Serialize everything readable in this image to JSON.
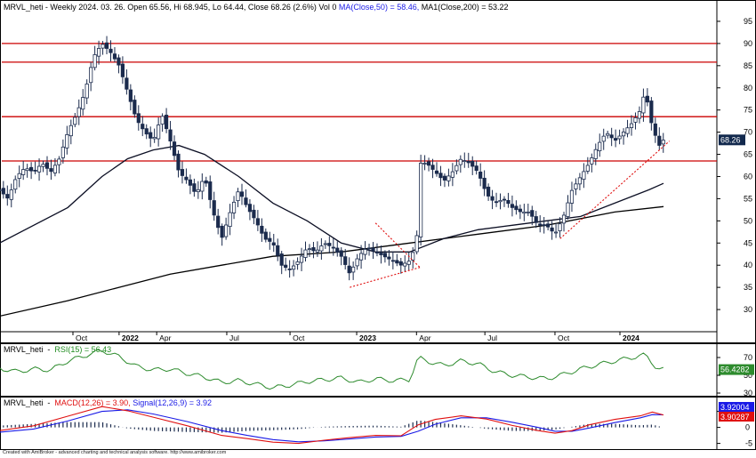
{
  "chart_data": {
    "type": "candlestick",
    "price_pane": {
      "title": {
        "ticker": "MRVL_heti",
        "header": "MRVL_heti - Weekly 2024. 03. 26. Open 65.56, Hi 68.945, Lo 64.44, Close 68.26 (2.6%) Vol 0",
        "ma50_label": "MA(Close,50) = 58.46,",
        "ma200_label": "MA1(Close,200) = 53.22"
      },
      "ylim": [
        25,
        97
      ],
      "y_ticks": [
        30,
        35,
        40,
        45,
        50,
        55,
        60,
        65,
        70,
        75,
        80,
        85,
        90,
        95
      ],
      "x_ticks": [
        {
          "label": "Oct",
          "bold": false,
          "w": 1.3
        },
        {
          "label": "2022",
          "bold": true,
          "w": 4.0
        },
        {
          "label": "Apr",
          "bold": false,
          "w": 6.2
        },
        {
          "label": "Jul",
          "bold": false,
          "w": 10.3
        },
        {
          "label": "Oct",
          "bold": false,
          "w": 14.0
        },
        {
          "label": "2023",
          "bold": true,
          "w": 17.9
        },
        {
          "label": "Apr",
          "bold": false,
          "w": 21.4
        },
        {
          "label": "Jul",
          "bold": false,
          "w": 25.4
        },
        {
          "label": "Oct",
          "bold": false,
          "w": 29.5
        },
        {
          "label": "2024",
          "bold": true,
          "w": 33.3
        }
      ],
      "last_price_label": "68.26",
      "horizontal_levels": [
        63.5,
        73.5,
        85.8,
        90
      ],
      "ohlc_anchors": [
        [
          -3.0,
          57
        ],
        [
          -2.5,
          55
        ],
        [
          -2.0,
          60
        ],
        [
          -1.5,
          62
        ],
        [
          -1.0,
          61
        ],
        [
          -0.5,
          63
        ],
        [
          0,
          61
        ],
        [
          0.5,
          64
        ],
        [
          1.0,
          70
        ],
        [
          1.5,
          74
        ],
        [
          2.0,
          79
        ],
        [
          2.5,
          87
        ],
        [
          3.0,
          90
        ],
        [
          3.5,
          88
        ],
        [
          4.0,
          85
        ],
        [
          4.5,
          79
        ],
        [
          5.0,
          73
        ],
        [
          5.5,
          70
        ],
        [
          6.0,
          68
        ],
        [
          6.5,
          74
        ],
        [
          7.0,
          68
        ],
        [
          7.5,
          61
        ],
        [
          8.0,
          59
        ],
        [
          8.5,
          56
        ],
        [
          9.0,
          60
        ],
        [
          9.5,
          52
        ],
        [
          10.0,
          46
        ],
        [
          10.5,
          52
        ],
        [
          11.0,
          57
        ],
        [
          11.5,
          53
        ],
        [
          12.0,
          50
        ],
        [
          12.5,
          46
        ],
        [
          13.0,
          45
        ],
        [
          13.5,
          40
        ],
        [
          14.0,
          39
        ],
        [
          14.5,
          41
        ],
        [
          15.0,
          44
        ],
        [
          15.5,
          43
        ],
        [
          16.0,
          45
        ],
        [
          16.5,
          44
        ],
        [
          17.0,
          42
        ],
        [
          17.5,
          38
        ],
        [
          18.0,
          42
        ],
        [
          18.5,
          44
        ],
        [
          19.0,
          43
        ],
        [
          19.5,
          42
        ],
        [
          20.0,
          41
        ],
        [
          20.5,
          40
        ],
        [
          21.0,
          41
        ],
        [
          21.4,
          45
        ],
        [
          21.6,
          63
        ],
        [
          22.0,
          63
        ],
        [
          22.5,
          61
        ],
        [
          23.0,
          59
        ],
        [
          23.5,
          61
        ],
        [
          24.0,
          64
        ],
        [
          24.5,
          63
        ],
        [
          25.0,
          61
        ],
        [
          25.5,
          56
        ],
        [
          26.0,
          54
        ],
        [
          26.5,
          55
        ],
        [
          27.0,
          53
        ],
        [
          27.5,
          52
        ],
        [
          28.0,
          52
        ],
        [
          28.5,
          49
        ],
        [
          29.0,
          49
        ],
        [
          29.5,
          47
        ],
        [
          30.0,
          51
        ],
        [
          30.5,
          57
        ],
        [
          31.0,
          60
        ],
        [
          31.5,
          63
        ],
        [
          32.0,
          67
        ],
        [
          32.5,
          70
        ],
        [
          33.0,
          68
        ],
        [
          33.5,
          70
        ],
        [
          34.0,
          72
        ],
        [
          34.5,
          75
        ],
        [
          34.8,
          80
        ],
        [
          35.0,
          74
        ],
        [
          35.3,
          70
        ],
        [
          35.6,
          67
        ],
        [
          35.85,
          68.26
        ]
      ],
      "ma50_line": [
        [
          -3,
          45
        ],
        [
          1,
          53
        ],
        [
          3,
          60
        ],
        [
          4.5,
          64
        ],
        [
          6,
          66
        ],
        [
          7.5,
          67
        ],
        [
          9,
          65
        ],
        [
          11,
          60
        ],
        [
          13,
          54
        ],
        [
          15,
          50
        ],
        [
          17,
          45
        ],
        [
          19,
          43
        ],
        [
          21,
          43
        ],
        [
          23,
          46
        ],
        [
          25,
          48
        ],
        [
          27,
          49
        ],
        [
          29,
          50
        ],
        [
          31,
          51
        ],
        [
          33,
          54
        ],
        [
          35,
          57
        ],
        [
          35.85,
          58.46
        ]
      ],
      "ma200_line": [
        [
          -3,
          28.5
        ],
        [
          1,
          32
        ],
        [
          4,
          35
        ],
        [
          7,
          38
        ],
        [
          10,
          40
        ],
        [
          13,
          42
        ],
        [
          17,
          43
        ],
        [
          21,
          45
        ],
        [
          25,
          47
        ],
        [
          29,
          49
        ],
        [
          33,
          52
        ],
        [
          35.85,
          53.22
        ]
      ],
      "trendlines": [
        {
          "color": "#e01010",
          "dash": true,
          "pts": [
            [
              19.0,
              49.5
            ],
            [
              21.6,
              39.5
            ]
          ]
        },
        {
          "color": "#e01010",
          "dash": true,
          "pts": [
            [
              17.5,
              35.0
            ],
            [
              21.6,
              39.5
            ]
          ]
        },
        {
          "color": "#e01010",
          "dash": true,
          "pts": [
            [
              29.8,
              46.0
            ],
            [
              36.2,
              68.0
            ]
          ]
        }
      ]
    },
    "rsi_pane": {
      "title": {
        "ticker": "MRVL_heti",
        "label": "RSI(15) = 56.43"
      },
      "ylim": [
        28,
        82
      ],
      "y_ticks": [
        30,
        50,
        70
      ],
      "last_label": "56.4282",
      "anchors": [
        [
          -3,
          58
        ],
        [
          -2,
          54
        ],
        [
          -1,
          57
        ],
        [
          0,
          56
        ],
        [
          1,
          66
        ],
        [
          2,
          72
        ],
        [
          3,
          78
        ],
        [
          4,
          71
        ],
        [
          5,
          60
        ],
        [
          6,
          56
        ],
        [
          7,
          57
        ],
        [
          8,
          52
        ],
        [
          9,
          48
        ],
        [
          10,
          42
        ],
        [
          11,
          44
        ],
        [
          12,
          40
        ],
        [
          13,
          36
        ],
        [
          14,
          39
        ],
        [
          15,
          43
        ],
        [
          16,
          45
        ],
        [
          17,
          47
        ],
        [
          18,
          42
        ],
        [
          19,
          46
        ],
        [
          20,
          44
        ],
        [
          21,
          45
        ],
        [
          21.5,
          70
        ],
        [
          22,
          66
        ],
        [
          23,
          61
        ],
        [
          24,
          66
        ],
        [
          25,
          63
        ],
        [
          26,
          54
        ],
        [
          27,
          50
        ],
        [
          28,
          48
        ],
        [
          29,
          46
        ],
        [
          30,
          51
        ],
        [
          31,
          57
        ],
        [
          32,
          62
        ],
        [
          33,
          66
        ],
        [
          34,
          70
        ],
        [
          34.8,
          73
        ],
        [
          35.2,
          64
        ],
        [
          35.5,
          57
        ],
        [
          35.85,
          56.43
        ]
      ]
    },
    "macd_pane": {
      "title": {
        "ticker": "MRVL_heti",
        "macd_label": "MACD(12,26) = 3.90,",
        "signal_label": "Signal(12,26,9) = 3.92"
      },
      "ylim": [
        -6.5,
        8.5
      ],
      "y_ticks": [
        5,
        0,
        -5
      ],
      "signal_last_label": "3.92004",
      "macd_last_label": "3.90287",
      "macd": [
        [
          -3,
          -1
        ],
        [
          -1,
          0.5
        ],
        [
          1,
          3.5
        ],
        [
          3,
          6.5
        ],
        [
          4.5,
          5.2
        ],
        [
          6,
          3.2
        ],
        [
          8,
          0.5
        ],
        [
          10,
          -2.5
        ],
        [
          11.5,
          -3.5
        ],
        [
          13,
          -4.6
        ],
        [
          14.5,
          -5.0
        ],
        [
          16,
          -4.0
        ],
        [
          17.5,
          -3.2
        ],
        [
          19,
          -2.5
        ],
        [
          20.5,
          -2.6
        ],
        [
          21.5,
          0.8
        ],
        [
          22.5,
          2.5
        ],
        [
          24,
          3.6
        ],
        [
          25.5,
          2.6
        ],
        [
          27,
          0.6
        ],
        [
          28.5,
          -1.0
        ],
        [
          29.5,
          -1.8
        ],
        [
          30.5,
          -1.0
        ],
        [
          31.5,
          0.8
        ],
        [
          33,
          2.5
        ],
        [
          34.5,
          3.6
        ],
        [
          35.2,
          4.8
        ],
        [
          35.85,
          3.9
        ]
      ],
      "signal": [
        [
          -3,
          -1.5
        ],
        [
          -1,
          -0.5
        ],
        [
          1,
          2.0
        ],
        [
          3,
          5.0
        ],
        [
          4.5,
          5.5
        ],
        [
          6,
          4.2
        ],
        [
          8,
          1.8
        ],
        [
          10,
          -1.0
        ],
        [
          11.5,
          -2.5
        ],
        [
          13,
          -3.8
        ],
        [
          14.5,
          -4.5
        ],
        [
          16,
          -4.2
        ],
        [
          17.5,
          -3.6
        ],
        [
          19,
          -3.0
        ],
        [
          20.5,
          -2.8
        ],
        [
          21.5,
          -1.2
        ],
        [
          22.5,
          1.0
        ],
        [
          24,
          3.0
        ],
        [
          25.5,
          3.0
        ],
        [
          27,
          1.6
        ],
        [
          28.5,
          0.0
        ],
        [
          29.5,
          -1.2
        ],
        [
          30.5,
          -1.2
        ],
        [
          31.5,
          -0.2
        ],
        [
          33,
          1.5
        ],
        [
          34.5,
          3.0
        ],
        [
          35.2,
          4.0
        ],
        [
          35.85,
          3.92
        ]
      ]
    }
  },
  "colors": {
    "up": "#ffffff",
    "down": "#1b2b4d",
    "candle_outline": "#1b2b4d",
    "level_lines": "#cc0000",
    "ma50": "#0c0f24",
    "ma200": "#000000",
    "rsi": "#2d8b2d",
    "macd": "#e01010",
    "signal": "#1a1ae6",
    "histogram": "#1b2b4d",
    "last_price_box": "#12294d",
    "rsi_box": "#2d8b2d",
    "signal_box": "#1a1ae6",
    "macd_box": "#e01010"
  },
  "credit": "Created with AmiBroker - advanced charting and technical analysis software. http://www.amibroker.com"
}
